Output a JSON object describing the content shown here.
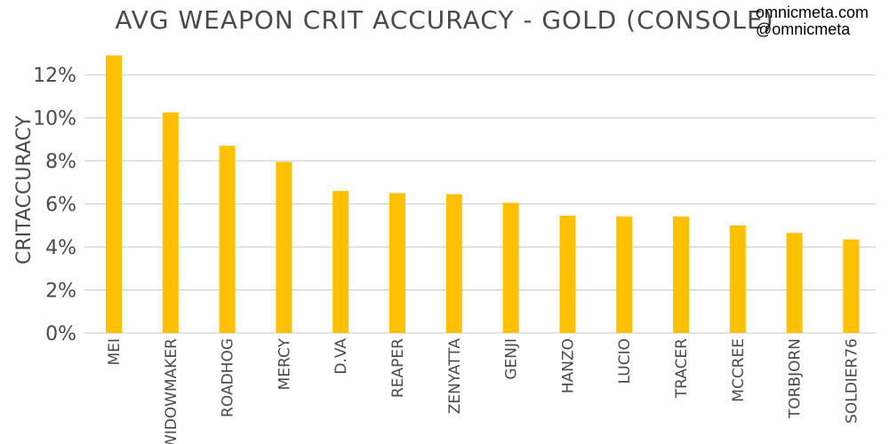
{
  "branding": {
    "site": "omnicmeta.com",
    "handle": "@omnicmeta"
  },
  "colors": {
    "bar": "#ffc000",
    "grid": "#c8c8c8",
    "text": "#4a4a4a"
  },
  "chart_data": {
    "type": "bar",
    "title": "AVG WEAPON CRIT ACCURACY - GOLD (CONSOLE)",
    "xlabel": "",
    "ylabel": "CRITACCURACY",
    "categories": [
      "MEI",
      "WIDOWMAKER",
      "ROADHOG",
      "MERCY",
      "D.VA",
      "REAPER",
      "ZENYATTA",
      "GENJI",
      "HANZO",
      "LUCIO",
      "TRACER",
      "MCCREE",
      "TORBJORN",
      "SOLDIER76"
    ],
    "values": [
      12.9,
      10.25,
      8.7,
      7.95,
      6.6,
      6.5,
      6.45,
      6.05,
      5.45,
      5.42,
      5.42,
      5.0,
      4.65,
      4.35
    ],
    "ylim": [
      0,
      13
    ],
    "yticks": [
      0,
      2,
      4,
      6,
      8,
      10,
      12
    ],
    "ytick_labels": [
      "0%",
      "2%",
      "4%",
      "6%",
      "8%",
      "10%",
      "12%"
    ],
    "grid": true,
    "legend": "none"
  }
}
